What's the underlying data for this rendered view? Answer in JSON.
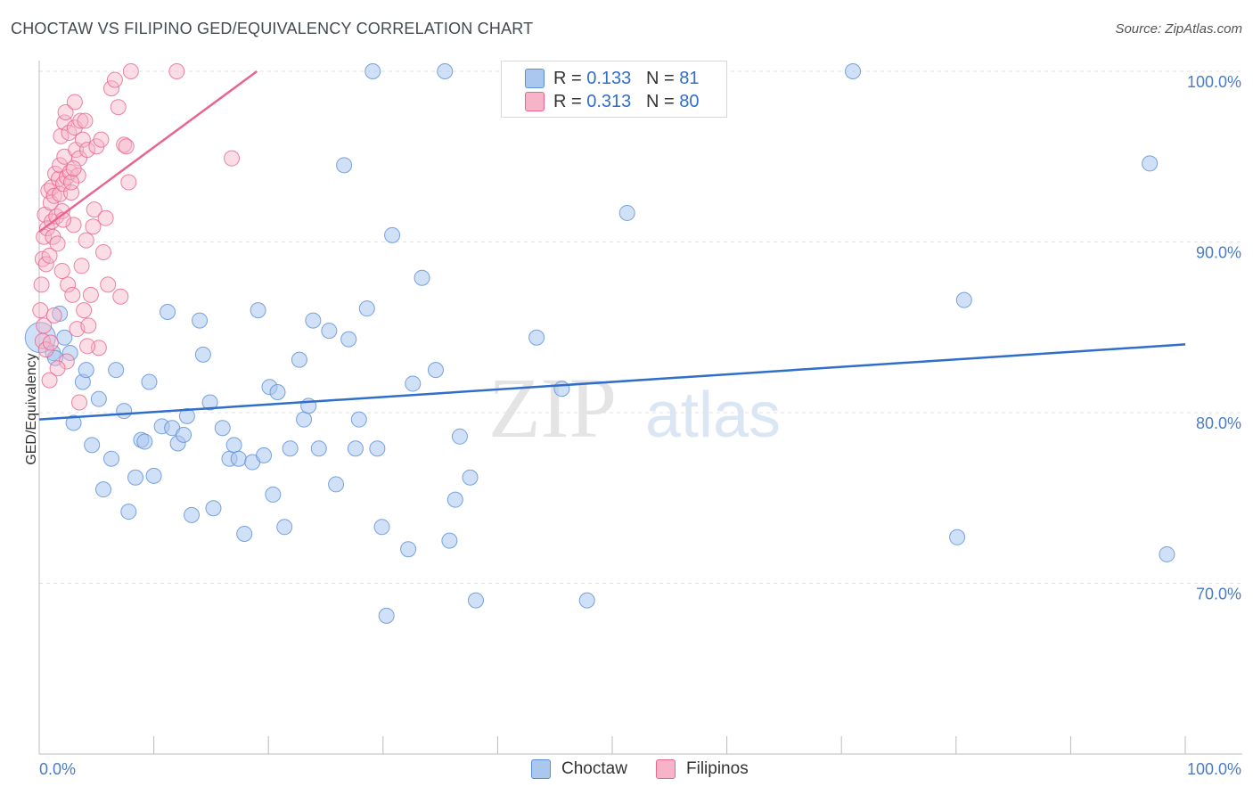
{
  "header": {
    "title": "CHOCTAW VS FILIPINO GED/EQUIVALENCY CORRELATION CHART",
    "source": "Source: ZipAtlas.com"
  },
  "watermark": {
    "zip": "ZIP",
    "atlas": "atlas"
  },
  "legend_top": {
    "rows": [
      {
        "r_label": "R = ",
        "r_value": "0.133",
        "n_label": "N = ",
        "n_value": "81"
      },
      {
        "r_label": "R = ",
        "r_value": "0.313",
        "n_label": "N = ",
        "n_value": "80"
      }
    ]
  },
  "legend_bottom": {
    "items": [
      "Choctaw",
      "Filipinos"
    ]
  },
  "chart_data": {
    "type": "scatter",
    "title": "CHOCTAW VS FILIPINO GED/EQUIVALENCY CORRELATION CHART",
    "xlabel": "",
    "ylabel": "GED/Equivalency",
    "xlim": [
      0,
      100
    ],
    "ylim": [
      60,
      100
    ],
    "x_tick_labels": [
      "0.0%",
      "100.0%"
    ],
    "y_ticks": [
      70,
      80,
      90,
      100
    ],
    "y_tick_labels": [
      "70.0%",
      "80.0%",
      "90.0%",
      "100.0%"
    ],
    "colors": {
      "choctaw": "#a9c7ef",
      "choctaw_line": "#2f6ec9",
      "filipinos": "#f7b4c8",
      "filipinos_line": "#e8658e",
      "axis_text": "#4a7cc6"
    },
    "series": [
      {
        "name": "Choctaw",
        "r": 0.133,
        "n": 81,
        "trend": {
          "x": [
            0,
            100
          ],
          "y": [
            79.6,
            84.0
          ]
        },
        "points": [
          [
            0.1,
            84.4
          ],
          [
            1.2,
            83.5
          ],
          [
            1.4,
            83.2
          ],
          [
            1.8,
            85.8
          ],
          [
            2.2,
            84.4
          ],
          [
            2.7,
            83.5
          ],
          [
            3.0,
            79.4
          ],
          [
            3.8,
            81.8
          ],
          [
            4.1,
            82.5
          ],
          [
            4.6,
            78.1
          ],
          [
            5.2,
            80.8
          ],
          [
            5.6,
            75.5
          ],
          [
            6.3,
            77.3
          ],
          [
            6.7,
            82.5
          ],
          [
            7.4,
            80.1
          ],
          [
            7.8,
            74.2
          ],
          [
            8.4,
            76.2
          ],
          [
            8.9,
            78.4
          ],
          [
            9.2,
            78.3
          ],
          [
            9.6,
            81.8
          ],
          [
            10.0,
            76.3
          ],
          [
            10.7,
            79.2
          ],
          [
            11.2,
            85.9
          ],
          [
            11.6,
            79.1
          ],
          [
            12.1,
            78.2
          ],
          [
            12.6,
            78.7
          ],
          [
            12.9,
            79.8
          ],
          [
            13.3,
            74.0
          ],
          [
            14.0,
            85.4
          ],
          [
            14.3,
            83.4
          ],
          [
            14.9,
            80.6
          ],
          [
            15.2,
            74.4
          ],
          [
            16.0,
            79.1
          ],
          [
            16.6,
            77.3
          ],
          [
            17.0,
            78.1
          ],
          [
            17.4,
            77.3
          ],
          [
            17.9,
            72.9
          ],
          [
            18.6,
            77.1
          ],
          [
            19.1,
            86.0
          ],
          [
            19.6,
            77.5
          ],
          [
            20.1,
            81.5
          ],
          [
            20.4,
            75.2
          ],
          [
            20.8,
            81.2
          ],
          [
            21.4,
            73.3
          ],
          [
            21.9,
            77.9
          ],
          [
            22.7,
            83.1
          ],
          [
            23.1,
            79.6
          ],
          [
            23.5,
            80.4
          ],
          [
            23.9,
            85.4
          ],
          [
            24.4,
            77.9
          ],
          [
            25.3,
            84.8
          ],
          [
            25.9,
            75.8
          ],
          [
            26.6,
            94.5
          ],
          [
            27.0,
            84.3
          ],
          [
            27.6,
            77.9
          ],
          [
            27.9,
            79.6
          ],
          [
            28.6,
            86.1
          ],
          [
            29.1,
            100.0
          ],
          [
            29.5,
            77.9
          ],
          [
            29.9,
            73.3
          ],
          [
            30.3,
            68.1
          ],
          [
            30.8,
            90.4
          ],
          [
            32.2,
            72.0
          ],
          [
            32.6,
            81.7
          ],
          [
            33.4,
            87.9
          ],
          [
            34.6,
            82.5
          ],
          [
            35.4,
            100.0
          ],
          [
            35.8,
            72.5
          ],
          [
            36.3,
            74.9
          ],
          [
            36.7,
            78.6
          ],
          [
            37.6,
            76.2
          ],
          [
            38.1,
            69.0
          ],
          [
            43.4,
            84.4
          ],
          [
            45.6,
            81.4
          ],
          [
            47.8,
            69.0
          ],
          [
            51.3,
            91.7
          ],
          [
            71.0,
            100.0
          ],
          [
            80.1,
            72.7
          ],
          [
            80.7,
            86.6
          ],
          [
            96.9,
            94.6
          ],
          [
            98.4,
            71.7
          ]
        ]
      },
      {
        "name": "Filipinos",
        "r": 0.313,
        "n": 80,
        "trend": {
          "x": [
            0,
            19
          ],
          "y": [
            90.6,
            100.0
          ]
        },
        "points": [
          [
            0.1,
            86.0
          ],
          [
            0.2,
            87.5
          ],
          [
            0.3,
            89.0
          ],
          [
            0.3,
            84.2
          ],
          [
            0.4,
            90.3
          ],
          [
            0.5,
            91.6
          ],
          [
            0.6,
            88.7
          ],
          [
            0.7,
            90.8
          ],
          [
            0.8,
            93.0
          ],
          [
            0.9,
            89.2
          ],
          [
            1.0,
            92.3
          ],
          [
            1.1,
            93.2
          ],
          [
            1.1,
            91.2
          ],
          [
            1.2,
            90.3
          ],
          [
            1.3,
            92.7
          ],
          [
            1.4,
            94.0
          ],
          [
            1.5,
            91.5
          ],
          [
            1.6,
            89.9
          ],
          [
            1.7,
            93.7
          ],
          [
            1.8,
            92.8
          ],
          [
            1.8,
            94.5
          ],
          [
            1.9,
            96.2
          ],
          [
            2.0,
            91.8
          ],
          [
            2.1,
            93.4
          ],
          [
            2.2,
            95.0
          ],
          [
            2.2,
            97.0
          ],
          [
            2.3,
            97.6
          ],
          [
            2.4,
            93.8
          ],
          [
            2.5,
            87.5
          ],
          [
            2.6,
            96.4
          ],
          [
            2.7,
            94.1
          ],
          [
            2.8,
            92.9
          ],
          [
            2.9,
            86.9
          ],
          [
            3.0,
            91.0
          ],
          [
            3.1,
            96.7
          ],
          [
            3.1,
            98.2
          ],
          [
            3.2,
            95.4
          ],
          [
            3.3,
            84.9
          ],
          [
            3.4,
            93.9
          ],
          [
            3.5,
            94.9
          ],
          [
            3.6,
            97.1
          ],
          [
            3.7,
            88.6
          ],
          [
            3.8,
            96.0
          ],
          [
            3.9,
            86.0
          ],
          [
            4.0,
            97.1
          ],
          [
            4.1,
            90.1
          ],
          [
            4.2,
            95.4
          ],
          [
            4.3,
            85.1
          ],
          [
            4.5,
            86.9
          ],
          [
            4.7,
            90.9
          ],
          [
            4.8,
            91.9
          ],
          [
            5.0,
            95.6
          ],
          [
            5.2,
            83.8
          ],
          [
            5.4,
            96.0
          ],
          [
            5.6,
            89.4
          ],
          [
            5.8,
            91.4
          ],
          [
            6.0,
            87.5
          ],
          [
            6.3,
            99.0
          ],
          [
            6.6,
            99.5
          ],
          [
            6.9,
            97.9
          ],
          [
            7.1,
            86.8
          ],
          [
            7.4,
            95.7
          ],
          [
            7.6,
            95.6
          ],
          [
            7.8,
            93.5
          ],
          [
            8.0,
            100.0
          ],
          [
            12.0,
            100.0
          ],
          [
            16.8,
            94.9
          ],
          [
            0.4,
            85.1
          ],
          [
            0.6,
            83.7
          ],
          [
            1.0,
            84.1
          ],
          [
            1.3,
            85.7
          ],
          [
            2.0,
            88.3
          ],
          [
            2.4,
            83.0
          ],
          [
            3.5,
            80.6
          ],
          [
            4.2,
            83.9
          ],
          [
            1.6,
            82.6
          ],
          [
            0.9,
            81.9
          ],
          [
            2.8,
            93.5
          ],
          [
            3.0,
            94.3
          ],
          [
            2.1,
            91.3
          ]
        ]
      }
    ]
  }
}
